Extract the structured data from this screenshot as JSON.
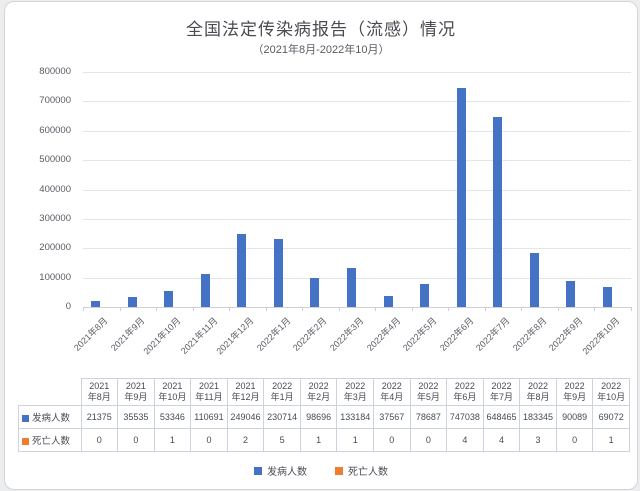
{
  "title": "全国法定传染病报告（流感）情况",
  "subtitle": "（2021年8月-2022年10月）",
  "chart_data": {
    "type": "bar",
    "categories": [
      "2021年8月",
      "2021年9月",
      "2021年10月",
      "2021年11月",
      "2021年12月",
      "2022年1月",
      "2022年2月",
      "2022年3月",
      "2022年4月",
      "2022年5月",
      "2022年6月",
      "2022年7月",
      "2022年8月",
      "2022年9月",
      "2022年10月"
    ],
    "series": [
      {
        "name": "发病人数",
        "color": "#4472C4",
        "values": [
          21375,
          35535,
          53346,
          110691,
          249046,
          230714,
          98696,
          133184,
          37567,
          78687,
          747038,
          648465,
          183345,
          90089,
          69072
        ]
      },
      {
        "name": "死亡人数",
        "color": "#ED7D31",
        "values": [
          0,
          0,
          1,
          0,
          2,
          5,
          1,
          1,
          0,
          0,
          4,
          4,
          3,
          0,
          1
        ]
      }
    ],
    "title": "全国法定传染病报告（流感）情况",
    "xlabel": "",
    "ylabel": "",
    "ylim": [
      0,
      800000
    ],
    "ytick_step": 100000,
    "grid": true,
    "legend_position": "bottom"
  }
}
